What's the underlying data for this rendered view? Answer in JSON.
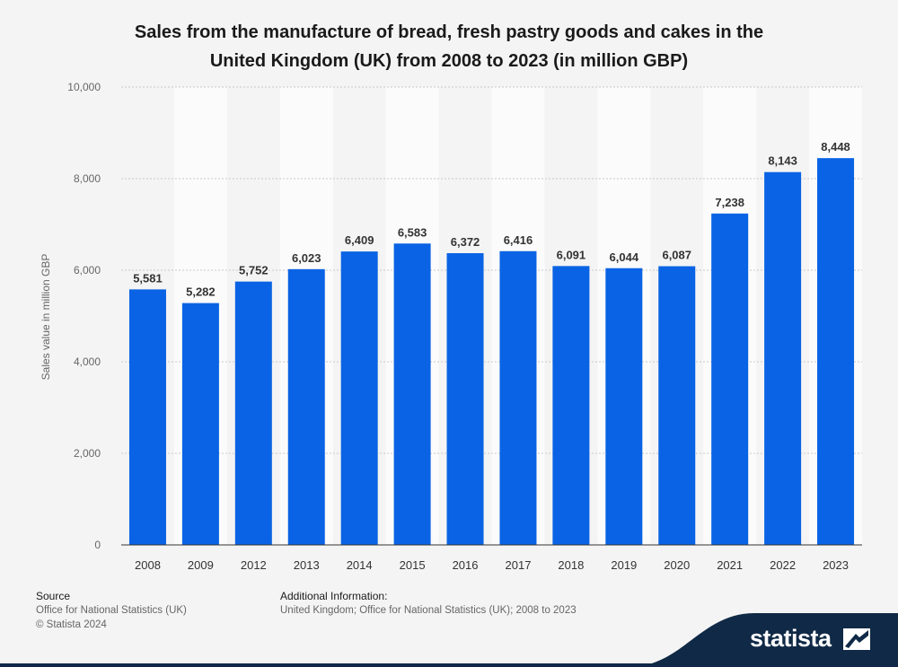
{
  "chart_data": {
    "type": "bar",
    "title_lines": [
      "Sales from the manufacture of bread, fresh pastry goods and cakes in the",
      "United Kingdom (UK) from 2008 to 2023 (in million GBP)"
    ],
    "ylabel": "Sales value in million GBP",
    "xlabel": "",
    "ylim": [
      0,
      10000
    ],
    "yticks": [
      0,
      2000,
      4000,
      6000,
      8000,
      10000
    ],
    "ytick_labels": [
      "0",
      "2,000",
      "4,000",
      "6,000",
      "8,000",
      "10,000"
    ],
    "categories": [
      "2008",
      "2009",
      "2012",
      "2013",
      "2014",
      "2015",
      "2016",
      "2017",
      "2018",
      "2019",
      "2020",
      "2021",
      "2022",
      "2023"
    ],
    "values": [
      5581,
      5282,
      5752,
      6023,
      6409,
      6583,
      6372,
      6416,
      6091,
      6044,
      6087,
      7238,
      8143,
      8448
    ],
    "value_labels": [
      "5,581",
      "5,282",
      "5,752",
      "6,023",
      "6,409",
      "6,583",
      "6,372",
      "6,416",
      "6,091",
      "6,044",
      "6,087",
      "7,238",
      "8,143",
      "8,448"
    ],
    "grid": true,
    "bar_color": "#0a63e4"
  },
  "footer": {
    "source_heading": "Source",
    "source_line": "Office for National Statistics (UK)",
    "copyright": "© Statista 2024",
    "info_heading": "Additional Information:",
    "info_line": "United Kingdom; Office for National Statistics (UK); 2008 to 2023"
  },
  "brand": {
    "name": "statista",
    "band_color": "#0f2946",
    "logo_icon": "statista-logo-icon"
  }
}
